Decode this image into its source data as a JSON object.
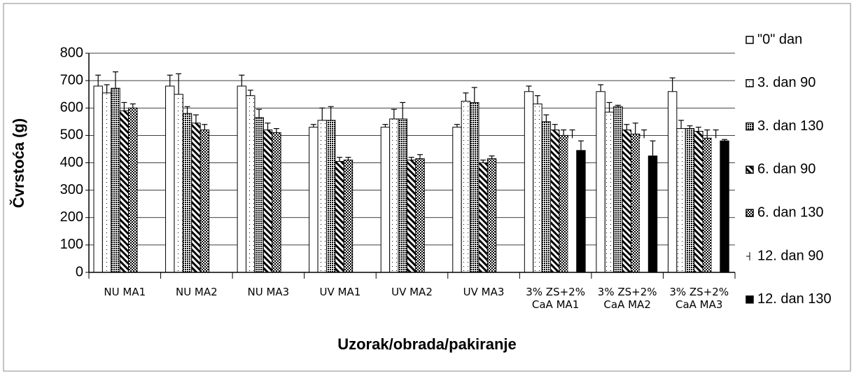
{
  "chart_data": {
    "type": "bar",
    "x_label": "Uzorak/obrada/pakiranje",
    "y_label": "Čvrstoća (g)",
    "categories": [
      "NU MA1",
      "NU MA2",
      "NU MA3",
      "UV MA1",
      "UV MA2",
      "UV MA3",
      "3% ZS+2% CaA MA1",
      "3% ZS+2% CaA MA2",
      "3% ZS+2% CaA MA3"
    ],
    "series": [
      {
        "name": "\"0\" dan",
        "color": "#ffffff",
        "pattern": "solid",
        "values": [
          680,
          680,
          680,
          530,
          530,
          530,
          660,
          660,
          660
        ],
        "errors": [
          40,
          40,
          40,
          10,
          10,
          10,
          20,
          25,
          50
        ]
      },
      {
        "name": "3. dan 90",
        "color": "#ffffff",
        "pattern": "dots",
        "values": [
          655,
          650,
          645,
          555,
          560,
          625,
          615,
          585,
          525
        ],
        "errors": [
          30,
          75,
          20,
          45,
          35,
          30,
          30,
          35,
          30
        ]
      },
      {
        "name": "3. dan 130",
        "color": "#ffffff",
        "pattern": "grid",
        "values": [
          672,
          580,
          565,
          555,
          560,
          620,
          550,
          605,
          525
        ],
        "errors": [
          60,
          25,
          30,
          50,
          60,
          55,
          25,
          5,
          10
        ]
      },
      {
        "name": "6. dan 90",
        "color": "#ffffff",
        "pattern": "diagonal",
        "values": [
          590,
          545,
          520,
          405,
          410,
          400,
          520,
          520,
          515
        ],
        "errors": [
          30,
          30,
          25,
          15,
          10,
          10,
          20,
          20,
          15
        ]
      },
      {
        "name": "6. dan 130",
        "color": "#ffffff",
        "pattern": "checker",
        "values": [
          600,
          520,
          510,
          410,
          415,
          415,
          500,
          505,
          490
        ],
        "errors": [
          15,
          20,
          15,
          10,
          15,
          10,
          20,
          40,
          30
        ]
      },
      {
        "name": "12. dan 90",
        "color": "#ffffff",
        "pattern": "none",
        "values": [
          null,
          null,
          null,
          null,
          null,
          null,
          490,
          490,
          490
        ],
        "errors": [
          null,
          null,
          null,
          null,
          null,
          null,
          30,
          30,
          30
        ]
      },
      {
        "name": "12. dan 130",
        "color": "#000000",
        "pattern": "solid",
        "values": [
          null,
          null,
          null,
          null,
          null,
          null,
          445,
          425,
          480
        ],
        "errors": [
          null,
          null,
          null,
          null,
          null,
          null,
          35,
          55,
          5
        ]
      }
    ],
    "ylim": [
      0,
      800
    ],
    "yticks": [
      0,
      100,
      200,
      300,
      400,
      500,
      600,
      700,
      800
    ],
    "grid": true,
    "legend": "right"
  }
}
